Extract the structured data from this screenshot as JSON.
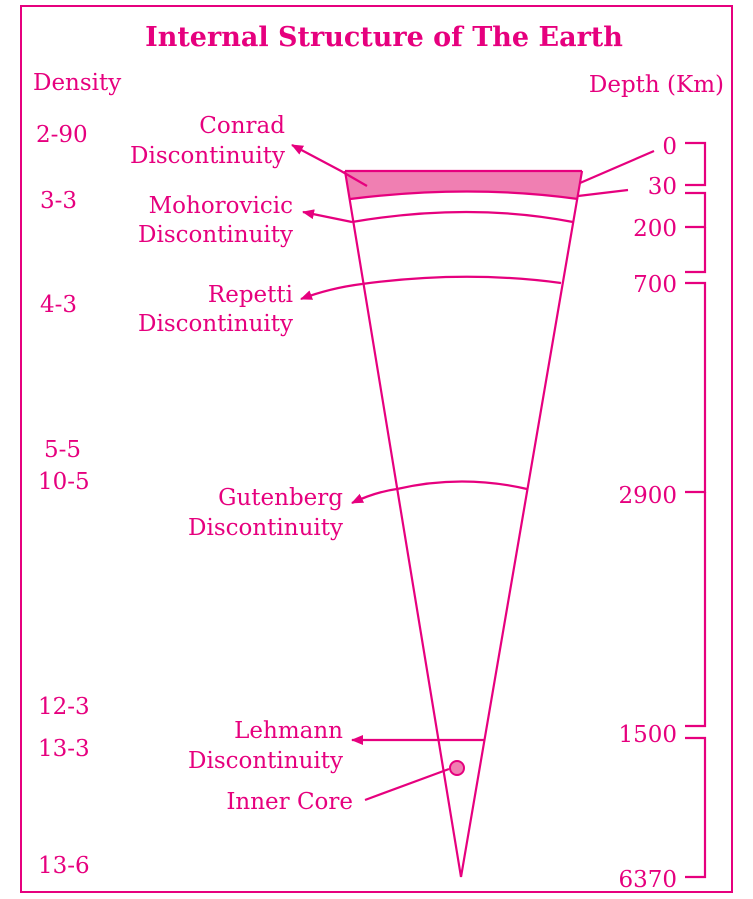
{
  "title": "Internal Structure of The Earth",
  "density_header": "Density",
  "depth_header": "Depth (Km)",
  "density_values": [
    "2-90",
    "3-3",
    "4-3",
    "5-5",
    "10-5",
    "12-3",
    "13-3",
    "13-6"
  ],
  "depth_values": [
    "0",
    "30",
    "200",
    "700",
    "2900",
    "1500",
    "6370"
  ],
  "discontinuities": [
    {
      "line1": "Conrad",
      "line2": "Discontinuity"
    },
    {
      "line1": "Mohorovicic",
      "line2": "Discontinuity"
    },
    {
      "line1": "Repetti",
      "line2": "Discontinuity"
    },
    {
      "line1": "Gutenberg",
      "line2": "Discontinuity"
    },
    {
      "line1": "Lehmann",
      "line2": "Discontinuity"
    }
  ],
  "inner_core_label": "Inner Core",
  "colors": {
    "accent": "#e6007e",
    "crust_fill": "#f07fb2"
  }
}
